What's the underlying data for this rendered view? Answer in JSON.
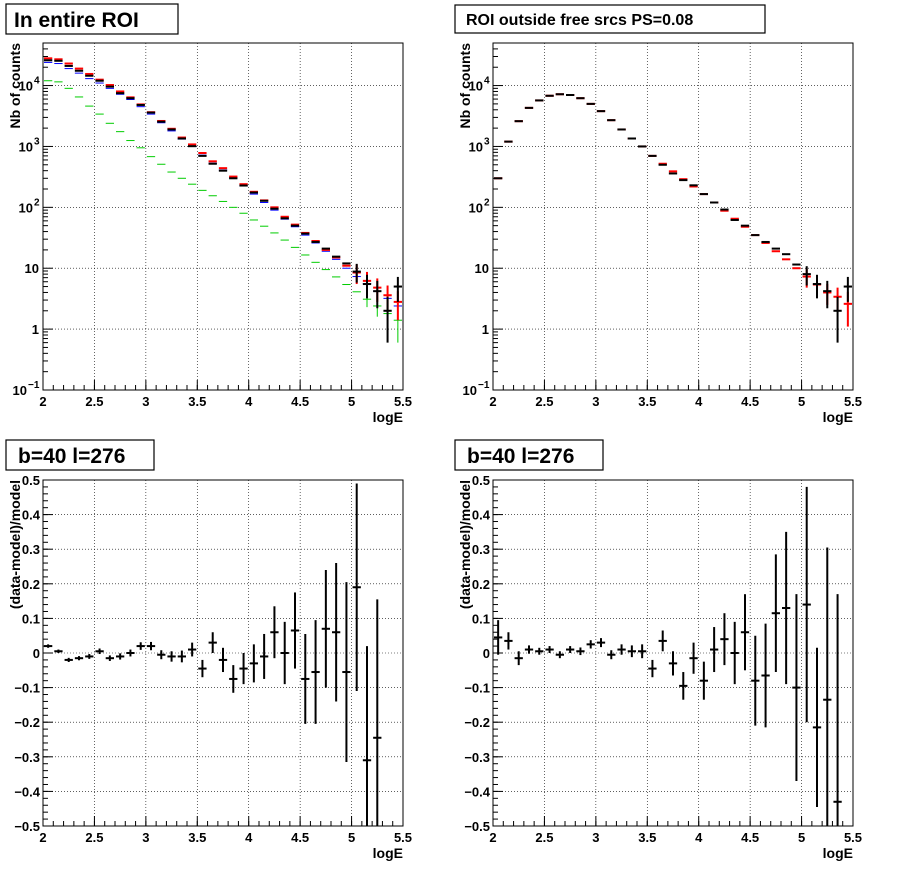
{
  "chart_data": [
    {
      "type": "scatter",
      "title": "In entire ROI",
      "xlabel": "logE",
      "ylabel": "Nb of counts",
      "xlim": [
        2,
        5.5
      ],
      "ylim": [
        0.1,
        50000
      ],
      "yscale": "log",
      "grid": true,
      "x_ticks": [
        "2",
        "2.5",
        "3",
        "3.5",
        "4",
        "4.5",
        "5",
        "5.5"
      ],
      "y_ticks": [
        {
          "v": 0.1,
          "base": "10",
          "exp": "−1"
        },
        {
          "v": 1,
          "base": "1",
          "exp": ""
        },
        {
          "v": 10,
          "base": "10",
          "exp": ""
        },
        {
          "v": 100,
          "base": "10",
          "exp": "2"
        },
        {
          "v": 1000,
          "base": "10",
          "exp": "3"
        },
        {
          "v": 10000,
          "base": "10",
          "exp": "4"
        }
      ],
      "series": [
        {
          "color": "#0000ff",
          "style": "step",
          "x": [
            2.05,
            2.15,
            2.25,
            2.35,
            2.45,
            2.55,
            2.65,
            2.75,
            2.85,
            2.95,
            3.05,
            3.15,
            3.25,
            3.35,
            3.45,
            3.55,
            3.65,
            3.75,
            3.85,
            3.95,
            4.05,
            4.15,
            4.25,
            4.35,
            4.45,
            4.55,
            4.65,
            4.75,
            4.85,
            4.95,
            5.05,
            5.15,
            5.25,
            5.35,
            5.45
          ],
          "y": [
            24000,
            23000,
            19000,
            16000,
            13000,
            11000,
            9000,
            7200,
            5900,
            4500,
            3400,
            2450,
            1800,
            1320,
            1000,
            720,
            530,
            410,
            305,
            225,
            165,
            120,
            90,
            64,
            48,
            35,
            26,
            19,
            14,
            10,
            7.3,
            5.6,
            4.2,
            3.2,
            2.4
          ]
        },
        {
          "color": "#00cc00",
          "style": "step",
          "x": [
            2.05,
            2.15,
            2.25,
            2.35,
            2.45,
            2.55,
            2.65,
            2.75,
            2.85,
            2.95,
            3.05,
            3.15,
            3.25,
            3.35,
            3.45,
            3.55,
            3.65,
            3.75,
            3.85,
            3.95,
            4.05,
            4.15,
            4.25,
            4.35,
            4.45,
            4.55,
            4.65,
            4.75,
            4.85,
            4.95,
            5.05,
            5.15,
            5.25,
            5.35,
            5.45
          ],
          "y": [
            12000,
            11500,
            9000,
            6500,
            4600,
            3400,
            2400,
            1750,
            1250,
            950,
            680,
            510,
            380,
            300,
            240,
            190,
            155,
            125,
            100,
            80,
            62,
            49,
            38,
            29,
            22,
            16.5,
            12.5,
            9.5,
            7.2,
            5.4,
            4.1,
            3.1,
            2.4,
            1.8,
            1.4
          ],
          "err": [
            0,
            0,
            0,
            0,
            0,
            0,
            0,
            0,
            0,
            0,
            0,
            0,
            0,
            0,
            0,
            0,
            0,
            0,
            0,
            0,
            0,
            0,
            0,
            0,
            0,
            0,
            0,
            0,
            0,
            0,
            0,
            0.8,
            0.8,
            0.8,
            0.8
          ]
        },
        {
          "color": "#ff0000",
          "style": "cross",
          "x": [
            2.05,
            2.15,
            2.25,
            2.35,
            2.45,
            2.55,
            2.65,
            2.75,
            2.85,
            2.95,
            3.05,
            3.15,
            3.25,
            3.35,
            3.45,
            3.55,
            3.65,
            3.75,
            3.85,
            3.95,
            4.05,
            4.15,
            4.25,
            4.35,
            4.45,
            4.55,
            4.65,
            4.75,
            4.85,
            4.95,
            5.05,
            5.15,
            5.25,
            5.35,
            5.45
          ],
          "y": [
            28000,
            27000,
            23000,
            19000,
            15500,
            12500,
            10200,
            8000,
            6400,
            4900,
            3650,
            2620,
            1950,
            1400,
            1080,
            780,
            570,
            440,
            320,
            240,
            180,
            130,
            100,
            70,
            52,
            38,
            28,
            20,
            15,
            11,
            8.5,
            6.2,
            4.8,
            3.6,
            2.8
          ],
          "err": [
            0,
            0,
            0,
            0,
            0,
            0,
            0,
            0,
            0,
            0,
            0,
            0,
            0,
            0,
            0,
            0,
            0,
            0,
            0,
            0,
            0,
            0,
            0,
            0,
            0,
            0,
            0,
            0,
            0,
            0,
            3,
            2.5,
            2,
            1.6,
            1.4
          ]
        },
        {
          "color": "#000000",
          "style": "cross",
          "x": [
            2.05,
            2.15,
            2.25,
            2.35,
            2.45,
            2.55,
            2.65,
            2.75,
            2.85,
            2.95,
            3.05,
            3.15,
            3.25,
            3.35,
            3.45,
            3.55,
            3.65,
            3.75,
            3.85,
            3.95,
            4.05,
            4.15,
            4.25,
            4.35,
            4.45,
            4.55,
            4.65,
            4.75,
            4.85,
            4.95,
            5.05,
            5.15,
            5.25,
            5.35,
            5.45
          ],
          "y": [
            26000,
            25500,
            21000,
            17500,
            14500,
            12000,
            9600,
            7500,
            6200,
            4800,
            3600,
            2550,
            1900,
            1350,
            1010,
            700,
            520,
            400,
            300,
            228,
            175,
            128,
            95,
            66,
            50,
            37,
            27,
            21,
            15.5,
            12,
            8.8,
            5.5,
            4.2,
            2,
            5
          ],
          "err": [
            0,
            0,
            0,
            0,
            0,
            0,
            0,
            0,
            0,
            0,
            0,
            0,
            0,
            0,
            0,
            0,
            0,
            0,
            0,
            0,
            0,
            0,
            0,
            0,
            0,
            0,
            0,
            0,
            0,
            0,
            3,
            2.3,
            2,
            1.4,
            2.2
          ]
        }
      ]
    },
    {
      "type": "scatter",
      "title": "ROI outside free srcs PS=0.08",
      "xlabel": "logE",
      "ylabel": "Nb of counts",
      "xlim": [
        2,
        5.5
      ],
      "ylim": [
        0.1,
        50000
      ],
      "yscale": "log",
      "grid": true,
      "x_ticks": [
        "2",
        "2.5",
        "3",
        "3.5",
        "4",
        "4.5",
        "5",
        "5.5"
      ],
      "y_ticks": [
        {
          "v": 0.1,
          "base": "10",
          "exp": "−1"
        },
        {
          "v": 1,
          "base": "1",
          "exp": ""
        },
        {
          "v": 10,
          "base": "10",
          "exp": ""
        },
        {
          "v": 100,
          "base": "10",
          "exp": "2"
        },
        {
          "v": 1000,
          "base": "10",
          "exp": "3"
        },
        {
          "v": 10000,
          "base": "10",
          "exp": "4"
        }
      ],
      "series": [
        {
          "color": "#ff0000",
          "style": "cross",
          "x": [
            2.05,
            2.15,
            2.25,
            2.35,
            2.45,
            2.55,
            2.65,
            2.75,
            2.85,
            2.95,
            3.05,
            3.15,
            3.25,
            3.35,
            3.45,
            3.55,
            3.65,
            3.75,
            3.85,
            3.95,
            4.05,
            4.15,
            4.25,
            4.35,
            4.45,
            4.55,
            4.65,
            4.75,
            4.85,
            4.95,
            5.05,
            5.15,
            5.25,
            5.35,
            5.45
          ],
          "y": [
            300,
            1200,
            2600,
            4300,
            5700,
            6800,
            7200,
            7000,
            6200,
            5000,
            3800,
            2700,
            1900,
            1350,
            1000,
            700,
            520,
            390,
            290,
            220,
            165,
            120,
            88,
            65,
            48,
            35,
            26,
            19,
            14,
            10,
            7.3,
            5.4,
            4,
            3.4,
            2.6
          ],
          "err": [
            0,
            0,
            0,
            0,
            0,
            0,
            0,
            0,
            0,
            0,
            0,
            0,
            0,
            0,
            0,
            0,
            0,
            0,
            0,
            0,
            0,
            0,
            0,
            0,
            0,
            0,
            0,
            0,
            0,
            0,
            2.5,
            2,
            1.5,
            1.4,
            1.5
          ]
        },
        {
          "color": "#000000",
          "style": "cross",
          "x": [
            2.05,
            2.15,
            2.25,
            2.35,
            2.45,
            2.55,
            2.65,
            2.75,
            2.85,
            2.95,
            3.05,
            3.15,
            3.25,
            3.35,
            3.45,
            3.55,
            3.65,
            3.75,
            3.85,
            3.95,
            4.05,
            4.15,
            4.25,
            4.35,
            4.45,
            4.55,
            4.65,
            4.75,
            4.85,
            4.95,
            5.05,
            5.15,
            5.25,
            5.35,
            5.45
          ],
          "y": [
            300,
            1200,
            2600,
            4300,
            5700,
            6800,
            7200,
            7000,
            6200,
            5000,
            3800,
            2700,
            1900,
            1350,
            1000,
            700,
            500,
            360,
            280,
            230,
            165,
            120,
            92,
            62,
            50,
            35,
            27,
            21,
            17,
            11.5,
            8,
            5.5,
            4.2,
            2,
            5
          ],
          "err": [
            0,
            0,
            0,
            0,
            0,
            0,
            0,
            0,
            0,
            0,
            0,
            0,
            0,
            0,
            0,
            0,
            0,
            0,
            0,
            0,
            0,
            0,
            0,
            0,
            0,
            0,
            0,
            0,
            0,
            0,
            2.8,
            2.3,
            2,
            1.4,
            2.2
          ]
        }
      ]
    },
    {
      "type": "scatter",
      "title": "b=40 l=276",
      "xlabel": "logE",
      "ylabel": "(data-model)/model",
      "xlim": [
        2,
        5.5
      ],
      "ylim": [
        -0.5,
        0.5
      ],
      "yscale": "linear",
      "grid": true,
      "x_ticks": [
        "2",
        "2.5",
        "3",
        "3.5",
        "4",
        "4.5",
        "5",
        "5.5"
      ],
      "y_ticks": [
        "−0.5",
        "−0.4",
        "−0.3",
        "−0.2",
        "−0.1",
        "0",
        "0.1",
        "0.2",
        "0.3",
        "0.4",
        "0.5"
      ],
      "series": [
        {
          "color": "#000000",
          "style": "cross",
          "x": [
            2.05,
            2.15,
            2.25,
            2.35,
            2.45,
            2.55,
            2.65,
            2.75,
            2.85,
            2.95,
            3.05,
            3.15,
            3.25,
            3.35,
            3.45,
            3.55,
            3.65,
            3.75,
            3.85,
            3.95,
            4.05,
            4.15,
            4.25,
            4.35,
            4.45,
            4.55,
            4.65,
            4.75,
            4.85,
            4.95,
            5.05,
            5.15,
            5.25
          ],
          "y": [
            0.02,
            0.005,
            -0.02,
            -0.015,
            -0.01,
            0.005,
            -0.015,
            -0.01,
            0.0,
            0.02,
            0.02,
            -0.005,
            -0.01,
            -0.01,
            0.01,
            -0.045,
            0.03,
            -0.02,
            -0.075,
            -0.045,
            -0.03,
            -0.01,
            0.06,
            0.0,
            0.065,
            -0.075,
            -0.055,
            0.07,
            0.06,
            -0.055,
            0.19,
            -0.31,
            -0.245
          ],
          "err": [
            0.005,
            0.005,
            0.006,
            0.006,
            0.007,
            0.008,
            0.008,
            0.009,
            0.01,
            0.011,
            0.012,
            0.013,
            0.015,
            0.017,
            0.02,
            0.025,
            0.03,
            0.035,
            0.04,
            0.045,
            0.055,
            0.065,
            0.075,
            0.09,
            0.11,
            0.13,
            0.15,
            0.17,
            0.2,
            0.26,
            0.3,
            0.33,
            0.4
          ]
        }
      ]
    },
    {
      "type": "scatter",
      "title": "b=40 l=276",
      "xlabel": "logE",
      "ylabel": "(data-model)/model",
      "xlim": [
        2,
        5.5
      ],
      "ylim": [
        -0.5,
        0.5
      ],
      "yscale": "linear",
      "grid": true,
      "x_ticks": [
        "2",
        "2.5",
        "3",
        "3.5",
        "4",
        "4.5",
        "5",
        "5.5"
      ],
      "y_ticks": [
        "−0.5",
        "−0.4",
        "−0.3",
        "−0.2",
        "−0.1",
        "0",
        "0.1",
        "0.2",
        "0.3",
        "0.4",
        "0.5"
      ],
      "series": [
        {
          "color": "#000000",
          "style": "cross",
          "x": [
            2.05,
            2.15,
            2.25,
            2.35,
            2.45,
            2.55,
            2.65,
            2.75,
            2.85,
            2.95,
            3.05,
            3.15,
            3.25,
            3.35,
            3.45,
            3.55,
            3.65,
            3.75,
            3.85,
            3.95,
            4.05,
            4.15,
            4.25,
            4.35,
            4.45,
            4.55,
            4.65,
            4.75,
            4.85,
            4.95,
            5.05,
            5.15,
            5.25,
            5.35
          ],
          "y": [
            0.045,
            0.035,
            -0.015,
            0.01,
            0.005,
            0.01,
            -0.005,
            0.01,
            0.005,
            0.025,
            0.03,
            -0.005,
            0.01,
            0.005,
            0.005,
            -0.045,
            0.035,
            -0.03,
            -0.095,
            -0.015,
            -0.08,
            0.01,
            0.04,
            0.0,
            0.06,
            -0.08,
            -0.065,
            0.115,
            0.13,
            -0.1,
            0.14,
            -0.215,
            -0.135,
            -0.43
          ],
          "err": [
            0.05,
            0.025,
            0.02,
            0.012,
            0.01,
            0.01,
            0.01,
            0.01,
            0.011,
            0.012,
            0.013,
            0.013,
            0.015,
            0.017,
            0.02,
            0.025,
            0.03,
            0.035,
            0.04,
            0.045,
            0.055,
            0.065,
            0.075,
            0.09,
            0.11,
            0.13,
            0.15,
            0.17,
            0.22,
            0.27,
            0.34,
            0.23,
            0.44,
            0.6
          ]
        }
      ]
    }
  ]
}
